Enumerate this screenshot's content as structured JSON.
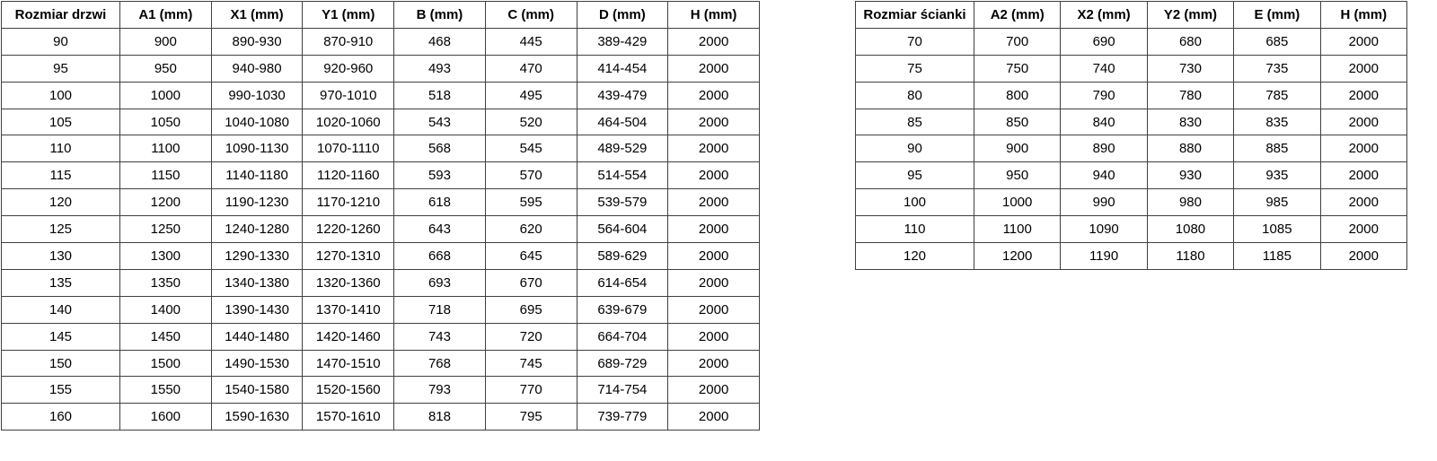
{
  "page": {
    "background_color": "#ffffff",
    "border_color": "#404040",
    "text_color": "#000000"
  },
  "door_table": {
    "title": "door sizes table",
    "headers": [
      "Rozmiar drzwi",
      "A1 (mm)",
      "X1 (mm)",
      "Y1 (mm)",
      "B (mm)",
      "C (mm)",
      "D (mm)",
      "H (mm)"
    ],
    "rows": [
      [
        "90",
        "900",
        "890-930",
        "870-910",
        "468",
        "445",
        "389-429",
        "2000"
      ],
      [
        "95",
        "950",
        "940-980",
        "920-960",
        "493",
        "470",
        "414-454",
        "2000"
      ],
      [
        "100",
        "1000",
        "990-1030",
        "970-1010",
        "518",
        "495",
        "439-479",
        "2000"
      ],
      [
        "105",
        "1050",
        "1040-1080",
        "1020-1060",
        "543",
        "520",
        "464-504",
        "2000"
      ],
      [
        "110",
        "1100",
        "1090-1130",
        "1070-1110",
        "568",
        "545",
        "489-529",
        "2000"
      ],
      [
        "115",
        "1150",
        "1140-1180",
        "1120-1160",
        "593",
        "570",
        "514-554",
        "2000"
      ],
      [
        "120",
        "1200",
        "1190-1230",
        "1170-1210",
        "618",
        "595",
        "539-579",
        "2000"
      ],
      [
        "125",
        "1250",
        "1240-1280",
        "1220-1260",
        "643",
        "620",
        "564-604",
        "2000"
      ],
      [
        "130",
        "1300",
        "1290-1330",
        "1270-1310",
        "668",
        "645",
        "589-629",
        "2000"
      ],
      [
        "135",
        "1350",
        "1340-1380",
        "1320-1360",
        "693",
        "670",
        "614-654",
        "2000"
      ],
      [
        "140",
        "1400",
        "1390-1430",
        "1370-1410",
        "718",
        "695",
        "639-679",
        "2000"
      ],
      [
        "145",
        "1450",
        "1440-1480",
        "1420-1460",
        "743",
        "720",
        "664-704",
        "2000"
      ],
      [
        "150",
        "1500",
        "1490-1530",
        "1470-1510",
        "768",
        "745",
        "689-729",
        "2000"
      ],
      [
        "155",
        "1550",
        "1540-1580",
        "1520-1560",
        "793",
        "770",
        "714-754",
        "2000"
      ],
      [
        "160",
        "1600",
        "1590-1630",
        "1570-1610",
        "818",
        "795",
        "739-779",
        "2000"
      ]
    ]
  },
  "wall_table": {
    "title": "wall panel sizes table",
    "headers": [
      "Rozmiar ścianki",
      "A2 (mm)",
      "X2 (mm)",
      "Y2 (mm)",
      "E (mm)",
      "H (mm)"
    ],
    "rows": [
      [
        "70",
        "700",
        "690",
        "680",
        "685",
        "2000"
      ],
      [
        "75",
        "750",
        "740",
        "730",
        "735",
        "2000"
      ],
      [
        "80",
        "800",
        "790",
        "780",
        "785",
        "2000"
      ],
      [
        "85",
        "850",
        "840",
        "830",
        "835",
        "2000"
      ],
      [
        "90",
        "900",
        "890",
        "880",
        "885",
        "2000"
      ],
      [
        "95",
        "950",
        "940",
        "930",
        "935",
        "2000"
      ],
      [
        "100",
        "1000",
        "990",
        "980",
        "985",
        "2000"
      ],
      [
        "110",
        "1100",
        "1090",
        "1080",
        "1085",
        "2000"
      ],
      [
        "120",
        "1200",
        "1190",
        "1180",
        "1185",
        "2000"
      ]
    ]
  }
}
